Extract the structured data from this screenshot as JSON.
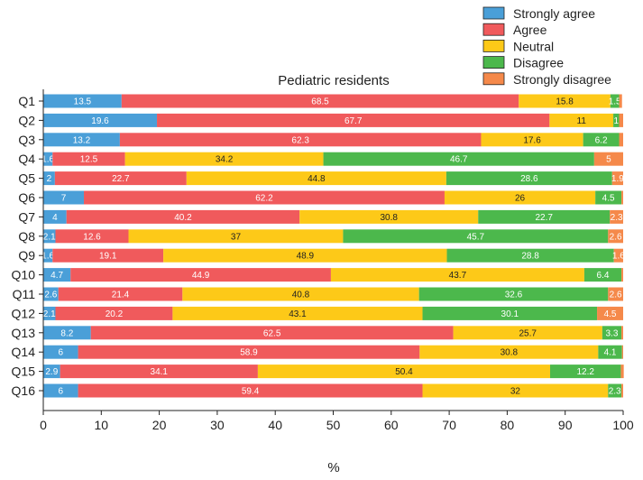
{
  "chart_data": {
    "type": "bar",
    "orientation": "horizontal",
    "stacked": true,
    "title": "Pediatric residents",
    "xlabel": "%",
    "ylabel": "",
    "xlim": [
      0,
      100
    ],
    "xticks": [
      0,
      10,
      20,
      30,
      40,
      50,
      60,
      70,
      80,
      90,
      100
    ],
    "grid": false,
    "legend_position": "top-right",
    "categories": [
      "Q1",
      "Q2",
      "Q3",
      "Q4",
      "Q5",
      "Q6",
      "Q7",
      "Q8",
      "Q9",
      "Q10",
      "Q11",
      "Q12",
      "Q13",
      "Q14",
      "Q15",
      "Q16"
    ],
    "series": [
      {
        "name": "Strongly agree",
        "color": "#4a9fd8",
        "label_color": "#ffffff",
        "values": [
          13.5,
          19.6,
          13.2,
          1.6,
          2,
          7,
          4,
          2.1,
          1.6,
          4.7,
          2.6,
          2.1,
          8.2,
          6,
          2.9,
          6
        ],
        "labels": [
          "13.5",
          "19.6",
          "13.2",
          "1.6",
          "2",
          "7",
          "4",
          "2.1",
          "1.6",
          "4.7",
          "2.6",
          "2.1",
          "8.2",
          "6",
          "2.9",
          "6"
        ]
      },
      {
        "name": "Agree",
        "color": "#f05a5c",
        "label_color": "#ffffff",
        "values": [
          68.5,
          67.7,
          62.3,
          12.5,
          22.7,
          62.2,
          40.2,
          12.6,
          19.1,
          44.9,
          21.4,
          20.2,
          62.5,
          58.9,
          34.1,
          59.4
        ],
        "labels": [
          "68.5",
          "67.7",
          "62.3",
          "12.5",
          "22.7",
          "62.2",
          "40.2",
          "12.6",
          "19.1",
          "44.9",
          "21.4",
          "20.2",
          "62.5",
          "58.9",
          "34.1",
          "59.4"
        ]
      },
      {
        "name": "Neutral",
        "color": "#fdc918",
        "label_color": "#222222",
        "values": [
          15.8,
          11,
          17.6,
          34.2,
          44.8,
          26,
          30.8,
          37,
          48.9,
          43.7,
          40.8,
          43.1,
          25.7,
          30.8,
          50.4,
          32
        ],
        "labels": [
          "15.8",
          "11",
          "17.6",
          "34.2",
          "44.8",
          "26",
          "30.8",
          "37",
          "48.9",
          "43.7",
          "40.8",
          "43.1",
          "25.7",
          "30.8",
          "50.4",
          "32"
        ]
      },
      {
        "name": "Disagree",
        "color": "#4cb84c",
        "label_color": "#ffffff",
        "values": [
          1.5,
          1,
          6.2,
          46.7,
          28.6,
          4.5,
          22.7,
          45.7,
          28.8,
          6.4,
          32.6,
          30.1,
          3.3,
          4.1,
          12.2,
          2.3
        ],
        "labels": [
          "1.5",
          "1",
          "6.2",
          "46.7",
          "28.6",
          "4.5",
          "22.7",
          "45.7",
          "28.8",
          "6.4",
          "32.6",
          "30.1",
          "3.3",
          "4.1",
          "12.2",
          "2.3"
        ]
      },
      {
        "name": "Strongly disagree",
        "color": "#f5894a",
        "label_color": "#ffffff",
        "values": [
          0.5,
          0.7,
          0.7,
          5,
          1.9,
          0.3,
          2.3,
          2.6,
          1.6,
          0.3,
          2.6,
          4.5,
          0.3,
          0.2,
          0.5,
          0.3
        ],
        "labels": [
          "",
          "",
          "",
          "5",
          "1.9",
          "",
          "2.3",
          "2.6",
          "1.6",
          "",
          "2.6",
          "4.5",
          "",
          "",
          "",
          ""
        ]
      }
    ]
  }
}
